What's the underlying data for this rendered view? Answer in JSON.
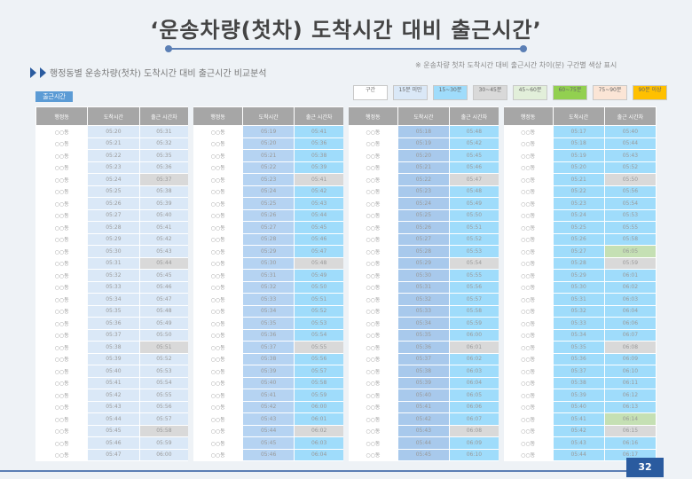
{
  "header": {
    "title": "‘운송차량(첫차) 도착시간 대비 출근시간’",
    "subtitle": "행정동별 운송차량(첫차) 도착시간 대비 출근시간 비교분석",
    "note": "※ 운송차량 첫차 도착시간 대비 출근시간 차이(분) 구간별 색상 표시"
  },
  "legend": [
    "구간",
    "15분 미만",
    "15~30분",
    "30~45분",
    "45~60분",
    "60~75분",
    "75~90분",
    "90분 이상"
  ],
  "legend_colors": [
    "#ffffff",
    "#dae8f7",
    "#9fdcfb",
    "#d9d9d9",
    "#e2efda",
    "#92d050",
    "#fbe5d6",
    "#ffc000"
  ],
  "section_tag": "출근시간",
  "table": {
    "headers": [
      "행정동",
      "도착시간",
      "출근 시간차"
    ],
    "rows": [
      [
        [
          "○○동",
          "05:20",
          "05:31"
        ],
        [
          "○○동",
          "05:19",
          "05:41"
        ],
        [
          "○○동",
          "05:18",
          "05:48"
        ],
        [
          "○○동",
          "05:17",
          "05:40"
        ]
      ],
      [
        [
          "○○동",
          "05:21",
          "05:32"
        ],
        [
          "○○동",
          "05:20",
          "05:36"
        ],
        [
          "○○동",
          "05:19",
          "05:42"
        ],
        [
          "○○동",
          "05:18",
          "05:44"
        ]
      ],
      [
        [
          "○○동",
          "05:22",
          "05:35"
        ],
        [
          "○○동",
          "05:21",
          "05:38"
        ],
        [
          "○○동",
          "05:20",
          "05:45"
        ],
        [
          "○○동",
          "05:19",
          "05:43"
        ]
      ],
      [
        [
          "○○동",
          "05:23",
          "05:36"
        ],
        [
          "○○동",
          "05:22",
          "05:39"
        ],
        [
          "○○동",
          "05:21",
          "05:46"
        ],
        [
          "○○동",
          "05:20",
          "05:52"
        ]
      ],
      [
        [
          "○○동",
          "05:24",
          "05:37"
        ],
        [
          "○○동",
          "05:23",
          "05:41"
        ],
        [
          "○○동",
          "05:22",
          "05:47"
        ],
        [
          "○○동",
          "05:21",
          "05:50"
        ]
      ],
      [
        [
          "○○동",
          "05:25",
          "05:38"
        ],
        [
          "○○동",
          "05:24",
          "05:42"
        ],
        [
          "○○동",
          "05:23",
          "05:48"
        ],
        [
          "○○동",
          "05:22",
          "05:56"
        ]
      ],
      [
        [
          "○○동",
          "05:26",
          "05:39"
        ],
        [
          "○○동",
          "05:25",
          "05:43"
        ],
        [
          "○○동",
          "05:24",
          "05:49"
        ],
        [
          "○○동",
          "05:23",
          "05:54"
        ]
      ],
      [
        [
          "○○동",
          "05:27",
          "05:40"
        ],
        [
          "○○동",
          "05:26",
          "05:44"
        ],
        [
          "○○동",
          "05:25",
          "05:50"
        ],
        [
          "○○동",
          "05:24",
          "05:53"
        ]
      ],
      [
        [
          "○○동",
          "05:28",
          "05:41"
        ],
        [
          "○○동",
          "05:27",
          "05:45"
        ],
        [
          "○○동",
          "05:26",
          "05:51"
        ],
        [
          "○○동",
          "05:25",
          "05:55"
        ]
      ],
      [
        [
          "○○동",
          "05:29",
          "05:42"
        ],
        [
          "○○동",
          "05:28",
          "05:46"
        ],
        [
          "○○동",
          "05:27",
          "05:52"
        ],
        [
          "○○동",
          "05:26",
          "05:58"
        ]
      ],
      [
        [
          "○○동",
          "05:30",
          "05:43"
        ],
        [
          "○○동",
          "05:29",
          "05:47"
        ],
        [
          "○○동",
          "05:28",
          "05:53"
        ],
        [
          "○○동",
          "05:27",
          "06:05"
        ]
      ],
      [
        [
          "○○동",
          "05:31",
          "05:44"
        ],
        [
          "○○동",
          "05:30",
          "05:48"
        ],
        [
          "○○동",
          "05:29",
          "05:54"
        ],
        [
          "○○동",
          "05:28",
          "05:59"
        ]
      ],
      [
        [
          "○○동",
          "05:32",
          "05:45"
        ],
        [
          "○○동",
          "05:31",
          "05:49"
        ],
        [
          "○○동",
          "05:30",
          "05:55"
        ],
        [
          "○○동",
          "05:29",
          "06:01"
        ]
      ],
      [
        [
          "○○동",
          "05:33",
          "05:46"
        ],
        [
          "○○동",
          "05:32",
          "05:50"
        ],
        [
          "○○동",
          "05:31",
          "05:56"
        ],
        [
          "○○동",
          "05:30",
          "06:02"
        ]
      ],
      [
        [
          "○○동",
          "05:34",
          "05:47"
        ],
        [
          "○○동",
          "05:33",
          "05:51"
        ],
        [
          "○○동",
          "05:32",
          "05:57"
        ],
        [
          "○○동",
          "05:31",
          "06:03"
        ]
      ],
      [
        [
          "○○동",
          "05:35",
          "05:48"
        ],
        [
          "○○동",
          "05:34",
          "05:52"
        ],
        [
          "○○동",
          "05:33",
          "05:58"
        ],
        [
          "○○동",
          "05:32",
          "06:04"
        ]
      ],
      [
        [
          "○○동",
          "05:36",
          "05:49"
        ],
        [
          "○○동",
          "05:35",
          "05:53"
        ],
        [
          "○○동",
          "05:34",
          "05:59"
        ],
        [
          "○○동",
          "05:33",
          "06:06"
        ]
      ],
      [
        [
          "○○동",
          "05:37",
          "05:50"
        ],
        [
          "○○동",
          "05:36",
          "05:54"
        ],
        [
          "○○동",
          "05:35",
          "06:00"
        ],
        [
          "○○동",
          "05:34",
          "06:07"
        ]
      ],
      [
        [
          "○○동",
          "05:38",
          "05:51"
        ],
        [
          "○○동",
          "05:37",
          "05:55"
        ],
        [
          "○○동",
          "05:36",
          "06:01"
        ],
        [
          "○○동",
          "05:35",
          "06:08"
        ]
      ],
      [
        [
          "○○동",
          "05:39",
          "05:52"
        ],
        [
          "○○동",
          "05:38",
          "05:56"
        ],
        [
          "○○동",
          "05:37",
          "06:02"
        ],
        [
          "○○동",
          "05:36",
          "06:09"
        ]
      ],
      [
        [
          "○○동",
          "05:40",
          "05:53"
        ],
        [
          "○○동",
          "05:39",
          "05:57"
        ],
        [
          "○○동",
          "05:38",
          "06:03"
        ],
        [
          "○○동",
          "05:37",
          "06:10"
        ]
      ],
      [
        [
          "○○동",
          "05:41",
          "05:54"
        ],
        [
          "○○동",
          "05:40",
          "05:58"
        ],
        [
          "○○동",
          "05:39",
          "06:04"
        ],
        [
          "○○동",
          "05:38",
          "06:11"
        ]
      ],
      [
        [
          "○○동",
          "05:42",
          "05:55"
        ],
        [
          "○○동",
          "05:41",
          "05:59"
        ],
        [
          "○○동",
          "05:40",
          "06:05"
        ],
        [
          "○○동",
          "05:39",
          "06:12"
        ]
      ],
      [
        [
          "○○동",
          "05:43",
          "05:56"
        ],
        [
          "○○동",
          "05:42",
          "06:00"
        ],
        [
          "○○동",
          "05:41",
          "06:06"
        ],
        [
          "○○동",
          "05:40",
          "06:13"
        ]
      ],
      [
        [
          "○○동",
          "05:44",
          "05:57"
        ],
        [
          "○○동",
          "05:43",
          "06:01"
        ],
        [
          "○○동",
          "05:42",
          "06:07"
        ],
        [
          "○○동",
          "05:41",
          "06:14"
        ]
      ],
      [
        [
          "○○동",
          "05:45",
          "05:58"
        ],
        [
          "○○동",
          "05:44",
          "06:02"
        ],
        [
          "○○동",
          "05:43",
          "06:08"
        ],
        [
          "○○동",
          "05:42",
          "06:15"
        ]
      ],
      [
        [
          "○○동",
          "05:46",
          "05:59"
        ],
        [
          "○○동",
          "05:45",
          "06:03"
        ],
        [
          "○○동",
          "05:44",
          "06:09"
        ],
        [
          "○○동",
          "05:43",
          "06:16"
        ]
      ],
      [
        [
          "○○동",
          "05:47",
          "06:00"
        ],
        [
          "○○동",
          "05:46",
          "06:04"
        ],
        [
          "○○동",
          "05:45",
          "06:10"
        ],
        [
          "○○동",
          "05:44",
          "06:17"
        ]
      ]
    ]
  },
  "page_number": "32"
}
